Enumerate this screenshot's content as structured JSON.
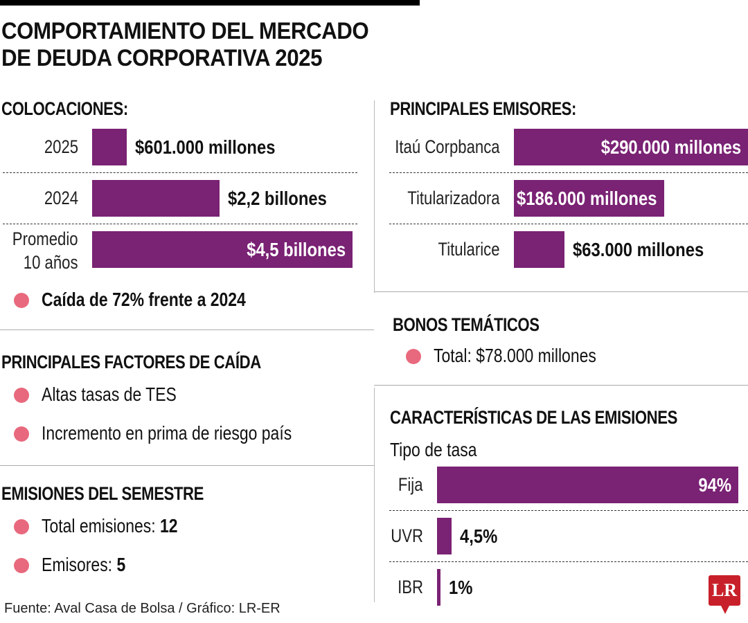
{
  "header": {
    "title_line1": "COMPORTAMIENTO DEL MERCADO",
    "title_line2": "DE DEUDA CORPORATIVA 2025"
  },
  "colors": {
    "bar": "#7a2274",
    "bullet": "#e8697d",
    "logo": "#c8202a"
  },
  "colocaciones": {
    "heading": "COLOCACIONES:",
    "note": "Caída de 72% frente a 2024"
  },
  "factores": {
    "heading": "PRINCIPALES FACTORES DE CAÍDA",
    "items": [
      "Altas tasas de TES",
      "Incremento en prima de riesgo país"
    ]
  },
  "semestre": {
    "heading": "EMISIONES DEL SEMESTRE",
    "items": [
      {
        "label": "Total emisiones: ",
        "value": "12"
      },
      {
        "label": "Emisores: ",
        "value": "5"
      }
    ]
  },
  "emisores": {
    "heading": "PRINCIPALES EMISORES:"
  },
  "bonos": {
    "heading": "BONOS TEMÁTICOS",
    "item": "Total: $78.000 millones"
  },
  "caracteristicas": {
    "heading": "CARACTERÍSTICAS DE LAS EMISIONES",
    "subheading": "Tipo de tasa"
  },
  "footer": {
    "source": "Fuente: Aval Casa de Bolsa / Gráfico: LR-ER",
    "logo": "LR"
  },
  "chart_data": [
    {
      "type": "bar",
      "title": "COLOCACIONES:",
      "orientation": "horizontal",
      "units": "billones COP",
      "categories": [
        "2025",
        "2024",
        "Promedio 10 años"
      ],
      "values": [
        0.601,
        2.2,
        4.5
      ],
      "labels": [
        "$601.000 millones",
        "$2,2 billones",
        "$4,5 billones"
      ]
    },
    {
      "type": "bar",
      "title": "PRINCIPALES EMISORES:",
      "orientation": "horizontal",
      "units": "millones COP",
      "categories": [
        "Itaú Corpbanca",
        "Titularizadora",
        "Titularice"
      ],
      "values": [
        290000,
        186000,
        63000
      ],
      "labels": [
        "$290.000 millones",
        "$186.000 millones",
        "$63.000 millones"
      ]
    },
    {
      "type": "bar",
      "title": "Tipo de tasa",
      "orientation": "horizontal",
      "units": "%",
      "categories": [
        "Fija",
        "UVR",
        "IBR"
      ],
      "values": [
        94,
        4.5,
        1
      ],
      "labels": [
        "94%",
        "4,5%",
        "1%"
      ]
    }
  ]
}
